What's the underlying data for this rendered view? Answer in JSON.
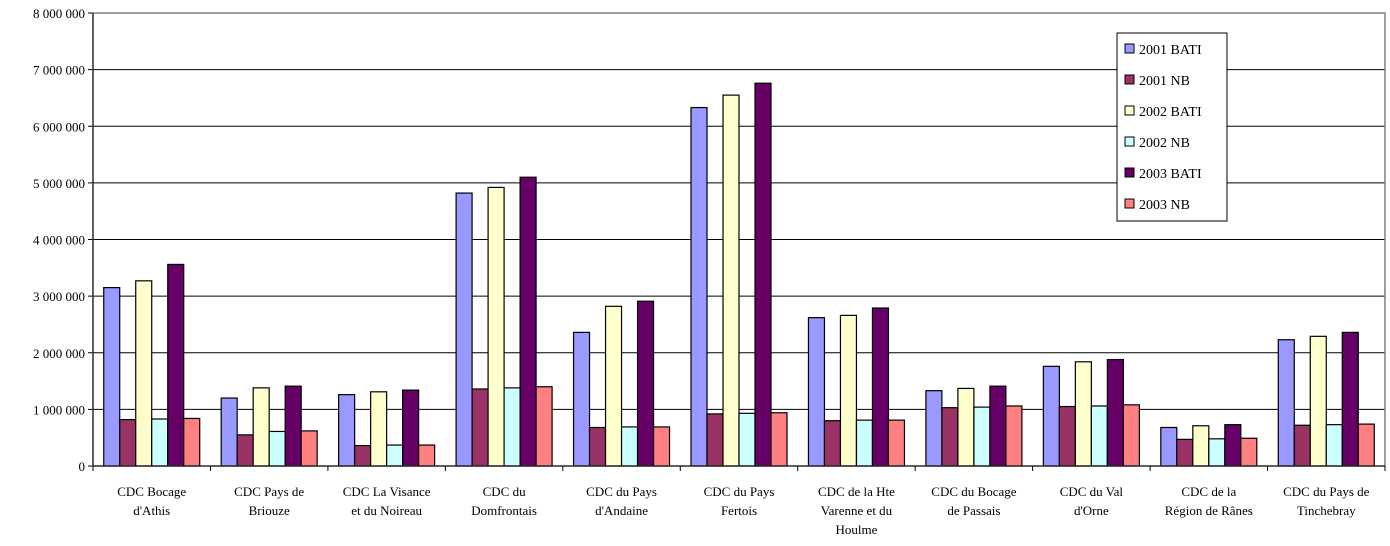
{
  "chart_data": {
    "type": "bar",
    "title": "",
    "xlabel": "",
    "ylabel": "",
    "ylim": [
      0,
      8000000
    ],
    "yticks": [
      0,
      1000000,
      2000000,
      3000000,
      4000000,
      5000000,
      6000000,
      7000000,
      8000000
    ],
    "ytick_labels": [
      "0",
      "1 000 000",
      "2 000 000",
      "3 000 000",
      "4 000 000",
      "5 000 000",
      "6 000 000",
      "7 000 000",
      "8 000 000"
    ],
    "grid": true,
    "legend_position": "top-right",
    "categories": [
      [
        "CDC Bocage",
        "d'Athis"
      ],
      [
        "CDC Pays de",
        "Briouze"
      ],
      [
        "CDC La Visance",
        "et du Noireau"
      ],
      [
        "CDC  du",
        "Domfrontais"
      ],
      [
        "CDC du Pays",
        "d'Andaine"
      ],
      [
        "CDC du Pays",
        "Fertois"
      ],
      [
        "CDC  de la Hte",
        "Varenne et du",
        "Houlme"
      ],
      [
        "CDC du Bocage",
        "de Passais"
      ],
      [
        "CDC du Val",
        "d'Orne"
      ],
      [
        "CDC de la",
        "Région de Rânes"
      ],
      [
        "CDC du Pays de",
        "Tinchebray"
      ]
    ],
    "series": [
      {
        "name": "2001 BATI",
        "color": "#9999ff",
        "values": [
          3150000,
          1200000,
          1260000,
          4820000,
          2360000,
          6330000,
          2620000,
          1330000,
          1760000,
          680000,
          2230000
        ]
      },
      {
        "name": "2001 NB",
        "color": "#993366",
        "values": [
          820000,
          550000,
          360000,
          1360000,
          680000,
          920000,
          800000,
          1030000,
          1050000,
          470000,
          720000
        ]
      },
      {
        "name": "2002 BATI",
        "color": "#ffffcc",
        "values": [
          3270000,
          1380000,
          1310000,
          4920000,
          2820000,
          6550000,
          2660000,
          1370000,
          1840000,
          710000,
          2290000
        ]
      },
      {
        "name": "2002 NB",
        "color": "#ccffff",
        "values": [
          830000,
          610000,
          370000,
          1380000,
          690000,
          930000,
          810000,
          1040000,
          1060000,
          480000,
          730000
        ]
      },
      {
        "name": "2003 BATI",
        "color": "#660066",
        "values": [
          3560000,
          1410000,
          1340000,
          5100000,
          2910000,
          6760000,
          2790000,
          1410000,
          1880000,
          730000,
          2360000
        ]
      },
      {
        "name": "2003 NB",
        "color": "#ff8080",
        "values": [
          840000,
          620000,
          370000,
          1400000,
          690000,
          940000,
          810000,
          1060000,
          1080000,
          490000,
          740000
        ]
      }
    ]
  }
}
